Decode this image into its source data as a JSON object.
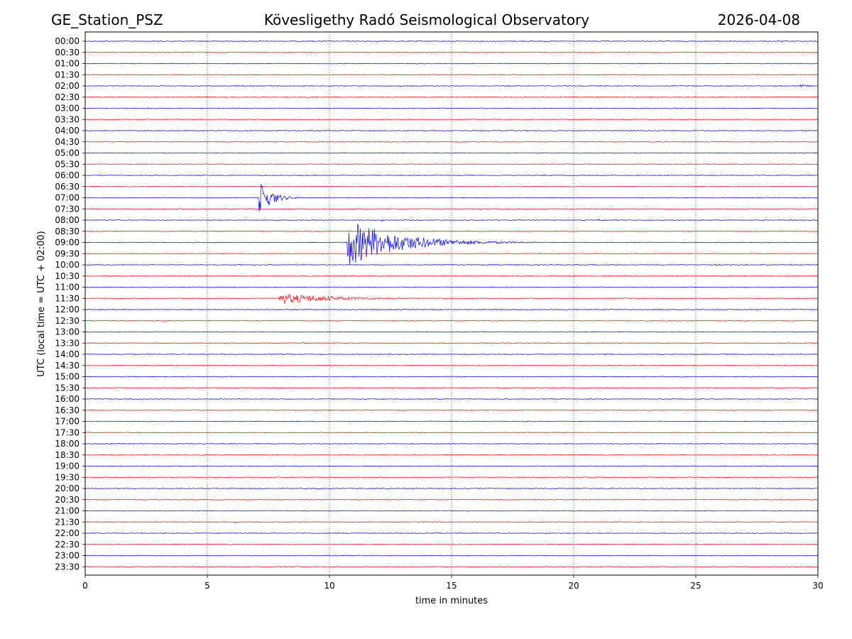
{
  "chart_data": {
    "type": "line",
    "title_left": "GE_Station_PSZ",
    "title_center": "Kövesligethy Radó Seismological Observatory",
    "title_right": "2026-04-08",
    "xlabel": "time in minutes",
    "ylabel": "UTC (local time = UTC + 02:00)",
    "xlim": [
      0,
      30
    ],
    "x_ticks": [
      "0",
      "5",
      "10",
      "15",
      "20",
      "25",
      "30"
    ],
    "grid": "vertical dotted at 5-minute ticks",
    "trace_colors": [
      "#0000ff",
      "#ff0000"
    ],
    "rows": [
      "00:00",
      "00:30",
      "01:00",
      "01:30",
      "02:00",
      "02:30",
      "03:00",
      "03:30",
      "04:00",
      "04:30",
      "05:00",
      "05:30",
      "06:00",
      "06:30",
      "07:00",
      "07:30",
      "08:00",
      "08:30",
      "09:00",
      "09:30",
      "10:00",
      "10:30",
      "11:00",
      "11:30",
      "12:00",
      "12:30",
      "13:00",
      "13:30",
      "14:00",
      "14:30",
      "15:00",
      "15:30",
      "16:00",
      "16:30",
      "17:00",
      "17:30",
      "18:00",
      "18:30",
      "19:00",
      "19:30",
      "20:00",
      "20:30",
      "21:00",
      "21:30",
      "22:00",
      "22:30",
      "23:00",
      "23:30"
    ],
    "events": [
      {
        "row": "07:00",
        "start_min": 7.1,
        "end_min": 9.0,
        "peak_amplitude_rows": 1.6,
        "decay_min": 0.5
      },
      {
        "row": "09:00",
        "start_min": 10.7,
        "end_min": 21.0,
        "peak_amplitude_rows": 2.2,
        "decay_min": 2.0
      },
      {
        "row": "11:30",
        "start_min": 7.9,
        "end_min": 13.8,
        "peak_amplitude_rows": 0.5,
        "decay_min": 2.2
      },
      {
        "row": "08:00",
        "start_min": 12.1,
        "end_min": 12.8,
        "peak_amplitude_rows": 0.12,
        "decay_min": 0.3
      },
      {
        "row": "08:00",
        "start_min": 21.0,
        "end_min": 22.0,
        "peak_amplitude_rows": 0.12,
        "decay_min": 0.4
      },
      {
        "row": "02:00",
        "start_min": 29.2,
        "end_min": 30.0,
        "peak_amplitude_rows": 0.15,
        "decay_min": 0.5
      },
      {
        "row": "06:30",
        "start_min": 27.0,
        "end_min": 28.0,
        "peak_amplitude_rows": 0.08,
        "decay_min": 0.4
      },
      {
        "row": "21:30",
        "start_min": 6.1,
        "end_min": 6.5,
        "peak_amplitude_rows": 0.12,
        "decay_min": 0.2
      },
      {
        "row": "19:30",
        "start_min": 12.0,
        "end_min": 12.7,
        "peak_amplitude_rows": 0.08,
        "decay_min": 0.3
      }
    ],
    "noise_amplitude_rows": 0.035
  }
}
